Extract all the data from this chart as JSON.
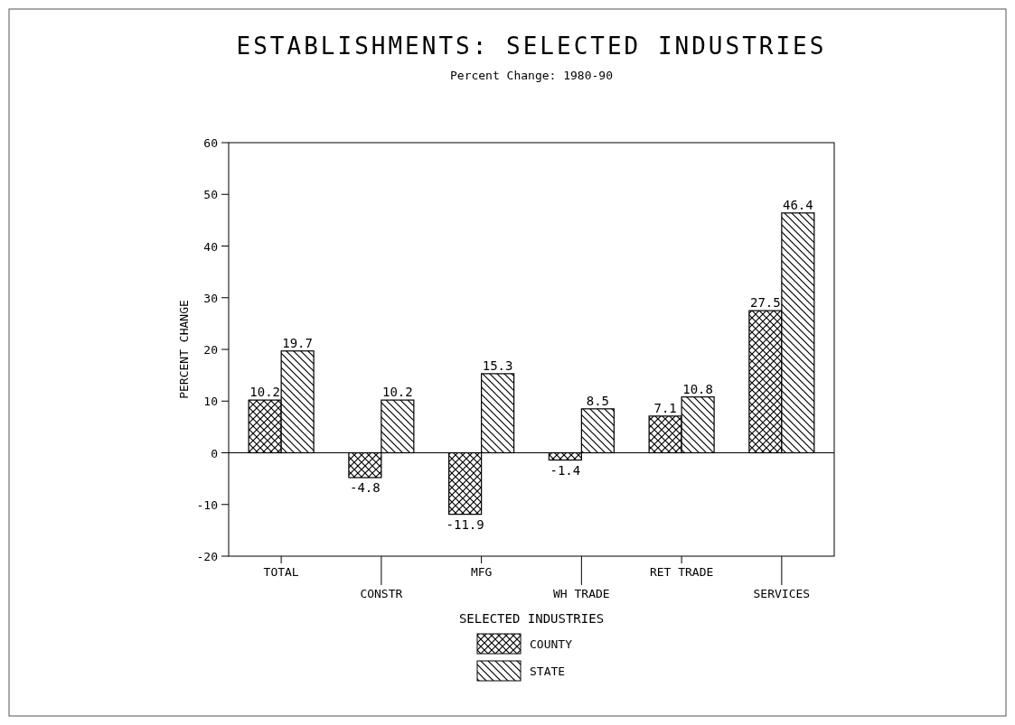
{
  "chart_data": {
    "type": "bar",
    "title": "ESTABLISHMENTS: SELECTED INDUSTRIES",
    "subtitle": "Percent Change: 1980-90",
    "ylabel": "PERCENT CHANGE",
    "legend_title": "SELECTED INDUSTRIES",
    "categories": [
      "TOTAL",
      "CONSTR",
      "MFG",
      "WH TRADE",
      "RET TRADE",
      "SERVICES"
    ],
    "series": [
      {
        "name": "COUNTY",
        "color": "#000000",
        "values": [
          10.2,
          -4.8,
          -11.9,
          -1.4,
          7.1,
          27.5
        ]
      },
      {
        "name": "STATE",
        "color": "#000000",
        "values": [
          19.7,
          10.2,
          15.3,
          8.5,
          10.8,
          46.4
        ]
      }
    ],
    "ylim": [
      -20,
      60
    ],
    "yticks": [
      -20,
      -10,
      0,
      10,
      20,
      30,
      40,
      50,
      60
    ],
    "data_labels": true,
    "legend": "bottom"
  }
}
